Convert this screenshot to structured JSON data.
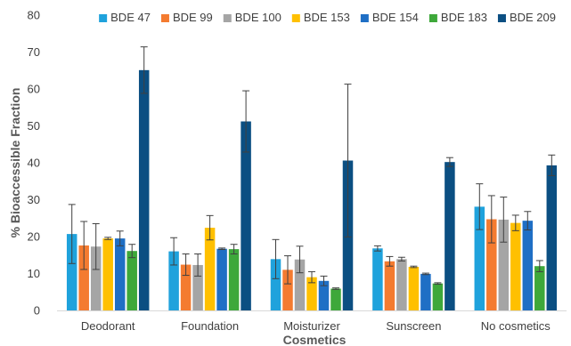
{
  "chart_data": {
    "type": "bar",
    "xlabel": "Cosmetics",
    "ylabel": "% Bioaccessible Fraction",
    "ylim": [
      0,
      80
    ],
    "yticks": [
      0,
      10,
      20,
      30,
      40,
      50,
      60,
      70,
      80
    ],
    "grid": false,
    "legend_position": "top-right",
    "categories": [
      "Deodorant",
      "Foundation",
      "Moisturizer",
      "Sunscreen",
      "No cosmetics"
    ],
    "series": [
      {
        "name": "BDE 47",
        "color": "#1fa2dc",
        "values": [
          20.7,
          16.0,
          13.9,
          16.8,
          28.1
        ],
        "errors": [
          8.0,
          3.7,
          5.3,
          0.7,
          6.2
        ]
      },
      {
        "name": "BDE 99",
        "color": "#f47b30",
        "values": [
          17.6,
          12.4,
          11.0,
          13.3,
          24.7
        ],
        "errors": [
          6.5,
          2.9,
          3.8,
          1.3,
          6.4
        ]
      },
      {
        "name": "BDE 100",
        "color": "#a5a5a5",
        "values": [
          17.3,
          12.3,
          13.8,
          13.9,
          24.6
        ],
        "errors": [
          6.2,
          3.0,
          3.6,
          0.5,
          6.1
        ]
      },
      {
        "name": "BDE 153",
        "color": "#ffc000",
        "values": [
          19.5,
          22.4,
          9.0,
          11.8,
          23.7
        ],
        "errors": [
          0.3,
          3.3,
          1.5,
          0.2,
          2.1
        ]
      },
      {
        "name": "BDE 154",
        "color": "#1f6fc5",
        "values": [
          19.5,
          16.7,
          8.0,
          9.9,
          24.3
        ],
        "errors": [
          2.0,
          0.2,
          1.3,
          0.2,
          2.5
        ]
      },
      {
        "name": "BDE 183",
        "color": "#3ea83a",
        "values": [
          16.1,
          16.6,
          5.9,
          7.3,
          12.0
        ],
        "errors": [
          1.8,
          1.3,
          0.2,
          0.2,
          1.5
        ]
      },
      {
        "name": "BDE 209",
        "color": "#0b4f82",
        "values": [
          65.1,
          51.2,
          40.6,
          40.2,
          39.3
        ],
        "errors": [
          6.3,
          8.3,
          20.7,
          1.2,
          2.8
        ]
      }
    ]
  }
}
